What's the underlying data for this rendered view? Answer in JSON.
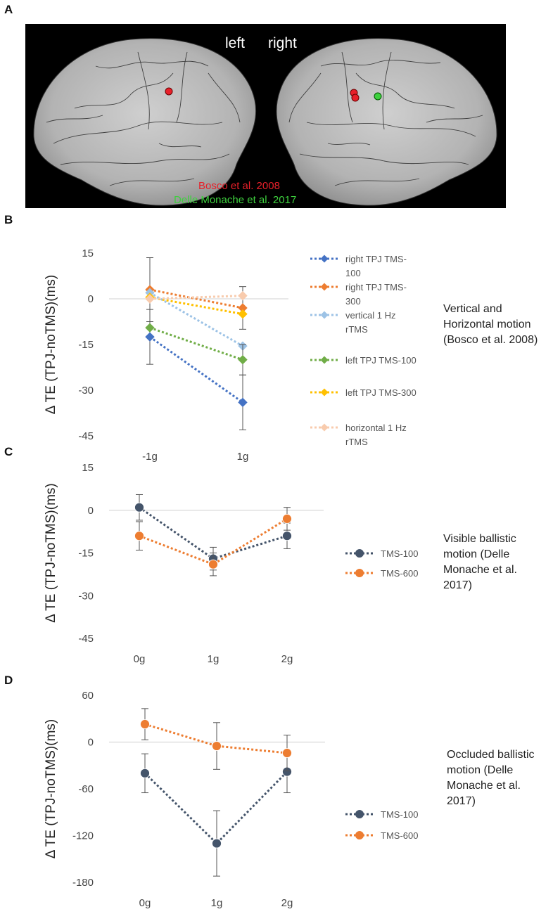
{
  "panels": {
    "a": {
      "letter": "A",
      "left_label": "left",
      "right_label": "right",
      "study_red": "Bosco et al. 2008",
      "study_green": "Delle Monache et al. 2017",
      "colors": {
        "red": "#e8202a",
        "green": "#3ed13e"
      }
    },
    "b": {
      "letter": "B",
      "caption": [
        "Vertical and",
        "Horizontal motion",
        "(Bosco et al. 2008)"
      ]
    },
    "c": {
      "letter": "C",
      "caption": [
        "Visible ballistic",
        "motion (Delle",
        "Monache et al.",
        "2017)"
      ]
    },
    "d": {
      "letter": "D",
      "caption": [
        "Occluded ballistic",
        "motion (Delle",
        "Monache et al.",
        "2017)"
      ]
    }
  },
  "chart_data": [
    {
      "id": "B",
      "type": "line",
      "ylabel": "Δ TE (TPJ-noTMS)(ms)",
      "categories": [
        "-1g",
        "1g"
      ],
      "ylim": [
        -45,
        15
      ],
      "yticks": [
        15,
        0,
        -15,
        -30,
        -45
      ],
      "marker": "diamond",
      "series": [
        {
          "name": "right TPJ TMS-100",
          "legend_lines": [
            "right TPJ TMS-",
            "100"
          ],
          "color": "#4472c4",
          "values": [
            -12.5,
            -34
          ],
          "err": [
            9,
            9
          ]
        },
        {
          "name": "right TPJ TMS-300",
          "legend_lines": [
            "right TPJ TMS-",
            "300"
          ],
          "color": "#ed7d31",
          "values": [
            3,
            -3
          ],
          "err": [
            10.5,
            7
          ]
        },
        {
          "name": "vertical 1 Hz rTMS",
          "legend_lines": [
            "vertical 1 Hz",
            "rTMS"
          ],
          "color": "#9dc3e6",
          "values": [
            2,
            -15.5
          ],
          "err": [
            0,
            0
          ]
        },
        {
          "name": "left TPJ TMS-100",
          "legend_lines": [
            "left TPJ TMS-100"
          ],
          "color": "#70ad47",
          "values": [
            -9.5,
            -20
          ],
          "err": [
            0,
            5
          ]
        },
        {
          "name": "left TPJ TMS-300",
          "legend_lines": [
            "left TPJ TMS-300"
          ],
          "color": "#ffc000",
          "values": [
            0.5,
            -5
          ],
          "err": [
            0,
            0
          ]
        },
        {
          "name": "horizontal 1 Hz rTMS",
          "legend_lines": [
            "horizontal 1 Hz",
            "rTMS"
          ],
          "color": "#f8cbad",
          "values": [
            0,
            1
          ],
          "err": [
            0,
            0
          ]
        }
      ]
    },
    {
      "id": "C",
      "type": "line",
      "ylabel": "Δ TE (TPJ-noTMS)(ms)",
      "categories": [
        "0g",
        "1g",
        "2g"
      ],
      "ylim": [
        -45,
        15
      ],
      "yticks": [
        15,
        0,
        -15,
        -30,
        -45
      ],
      "marker": "circle",
      "series": [
        {
          "name": "TMS-100",
          "color": "#44546a",
          "values": [
            1,
            -17,
            -9
          ],
          "err": [
            4.5,
            4,
            4.5
          ]
        },
        {
          "name": "TMS-600",
          "color": "#ed7d31",
          "values": [
            -9,
            -19,
            -3
          ],
          "err": [
            5,
            4,
            4
          ]
        }
      ]
    },
    {
      "id": "D",
      "type": "line",
      "ylabel": "Δ TE (TPJ-noTMS)(ms)",
      "categories": [
        "0g",
        "1g",
        "2g"
      ],
      "ylim": [
        -180,
        60
      ],
      "yticks": [
        60,
        0,
        -60,
        -120,
        -180
      ],
      "marker": "circle",
      "series": [
        {
          "name": "TMS-100",
          "color": "#44546a",
          "values": [
            -40,
            -130,
            -38
          ],
          "err": [
            25,
            42,
            27
          ]
        },
        {
          "name": "TMS-600",
          "color": "#ed7d31",
          "values": [
            23,
            -5,
            -14
          ],
          "err": [
            20,
            30,
            23
          ]
        }
      ]
    }
  ]
}
